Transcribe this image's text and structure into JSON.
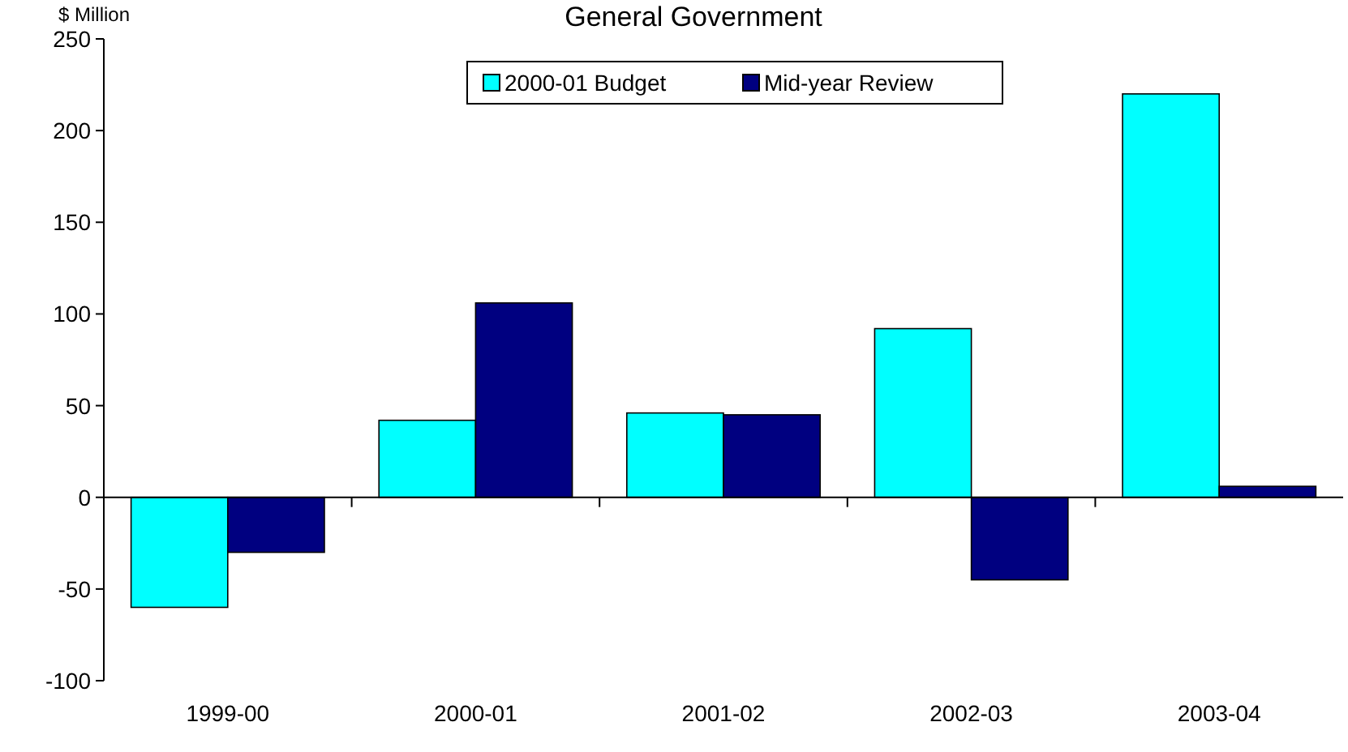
{
  "chart_data": {
    "type": "bar",
    "title": "General Government",
    "ylabel": "$ Million",
    "categories": [
      "1999-00",
      "2000-01",
      "2001-02",
      "2002-03",
      "2003-04"
    ],
    "series": [
      {
        "name": "2000-01 Budget",
        "color": "#00ffff",
        "values": [
          -60,
          42,
          46,
          92,
          220
        ]
      },
      {
        "name": "Mid-year Review",
        "color": "#000080",
        "values": [
          -30,
          106,
          45,
          -45,
          6
        ]
      }
    ],
    "ylim": [
      -100,
      250
    ],
    "yticks": [
      -100,
      -50,
      0,
      50,
      100,
      150,
      200,
      250
    ],
    "legend": "top right"
  }
}
